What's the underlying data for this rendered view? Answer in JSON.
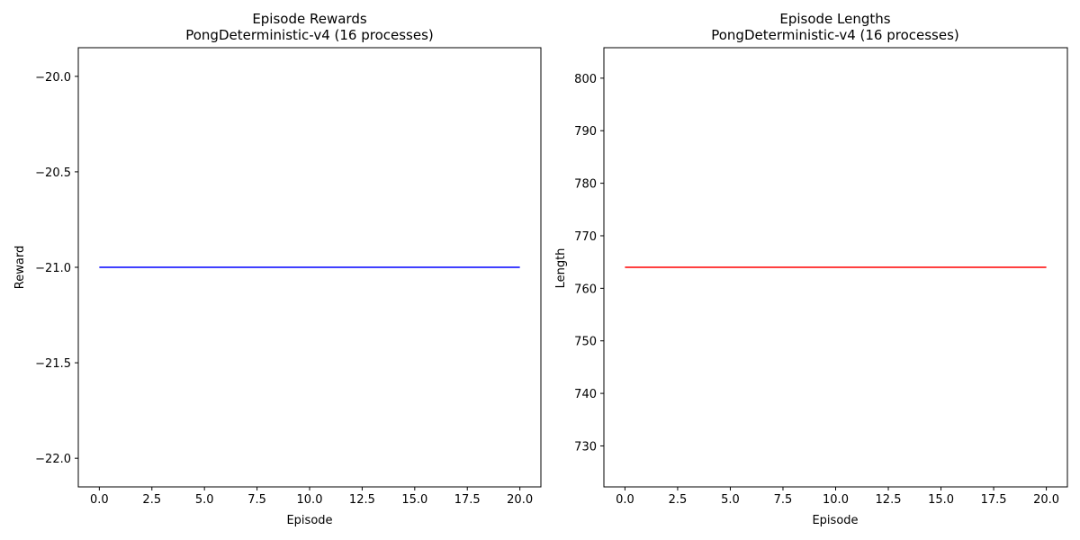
{
  "chart_data": [
    {
      "type": "line",
      "title": "Episode Rewards\nPongDeterministic-v4 (16 processes)",
      "title_lines": [
        "Episode Rewards",
        "PongDeterministic-v4 (16 processes)"
      ],
      "xlabel": "Episode",
      "ylabel": "Reward",
      "xlim": [
        -1,
        21
      ],
      "ylim": [
        -22.15,
        -19.85
      ],
      "xticks": [
        0.0,
        2.5,
        5.0,
        7.5,
        10.0,
        12.5,
        15.0,
        17.5,
        20.0
      ],
      "xtick_labels": [
        "0.0",
        "2.5",
        "5.0",
        "7.5",
        "10.0",
        "12.5",
        "15.0",
        "17.5",
        "20.0"
      ],
      "yticks": [
        -20.0,
        -20.5,
        -21.0,
        -21.5,
        -22.0
      ],
      "ytick_labels": [
        "−20.0",
        "−20.5",
        "−21.0",
        "−21.5",
        "−22.0"
      ],
      "grid": false,
      "series": [
        {
          "color": "#0000ff",
          "x": [
            0,
            20
          ],
          "y": [
            -21.0,
            -21.0
          ]
        }
      ]
    },
    {
      "type": "line",
      "title": "Episode Lengths\nPongDeterministic-v4 (16 processes)",
      "title_lines": [
        "Episode Lengths",
        "PongDeterministic-v4 (16 processes)"
      ],
      "xlabel": "Episode",
      "ylabel": "Length",
      "xlim": [
        -1,
        21
      ],
      "ylim": [
        722.2,
        805.8
      ],
      "xticks": [
        0.0,
        2.5,
        5.0,
        7.5,
        10.0,
        12.5,
        15.0,
        17.5,
        20.0
      ],
      "xtick_labels": [
        "0.0",
        "2.5",
        "5.0",
        "7.5",
        "10.0",
        "12.5",
        "15.0",
        "17.5",
        "20.0"
      ],
      "yticks": [
        730,
        740,
        750,
        760,
        770,
        780,
        790,
        800
      ],
      "ytick_labels": [
        "730",
        "740",
        "750",
        "760",
        "770",
        "780",
        "790",
        "800"
      ],
      "grid": false,
      "series": [
        {
          "color": "#ff0000",
          "x": [
            0,
            20
          ],
          "y": [
            764,
            764
          ]
        }
      ]
    }
  ]
}
